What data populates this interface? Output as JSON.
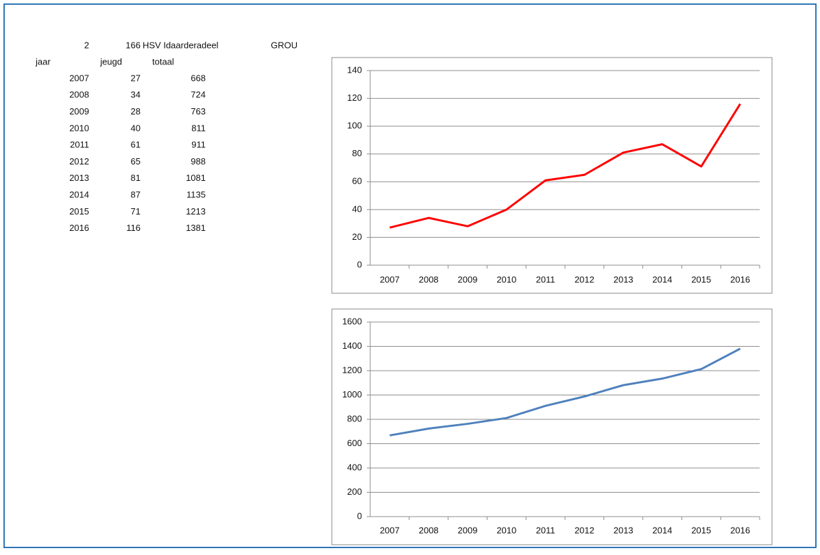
{
  "sheet": {
    "top_row": [
      2,
      166,
      "HSV Idaarderadeel",
      "GROU"
    ],
    "columns": [
      "jaar",
      "jeugd",
      "totaal"
    ],
    "rows": [
      [
        2007,
        27,
        668
      ],
      [
        2008,
        34,
        724
      ],
      [
        2009,
        28,
        763
      ],
      [
        2010,
        40,
        811
      ],
      [
        2011,
        61,
        911
      ],
      [
        2012,
        65,
        988
      ],
      [
        2013,
        81,
        1081
      ],
      [
        2014,
        87,
        1135
      ],
      [
        2015,
        71,
        1213
      ],
      [
        2016,
        116,
        1381
      ]
    ]
  },
  "chart_data": [
    {
      "type": "line",
      "categories": [
        "2007",
        "2008",
        "2009",
        "2010",
        "2011",
        "2012",
        "2013",
        "2014",
        "2015",
        "2016"
      ],
      "values": [
        27,
        34,
        28,
        40,
        61,
        65,
        81,
        87,
        71,
        116
      ],
      "color": "#ff0000",
      "ylim": [
        0,
        140
      ],
      "yticks": [
        0,
        20,
        40,
        60,
        80,
        100,
        120,
        140
      ],
      "grid": true
    },
    {
      "type": "line",
      "categories": [
        "2007",
        "2008",
        "2009",
        "2010",
        "2011",
        "2012",
        "2013",
        "2014",
        "2015",
        "2016"
      ],
      "values": [
        668,
        724,
        763,
        811,
        911,
        988,
        1081,
        1135,
        1213,
        1381
      ],
      "color": "#4f81bd",
      "ylim": [
        0,
        1600
      ],
      "yticks": [
        0,
        200,
        400,
        600,
        800,
        1000,
        1200,
        1400,
        1600
      ],
      "grid": true
    }
  ]
}
